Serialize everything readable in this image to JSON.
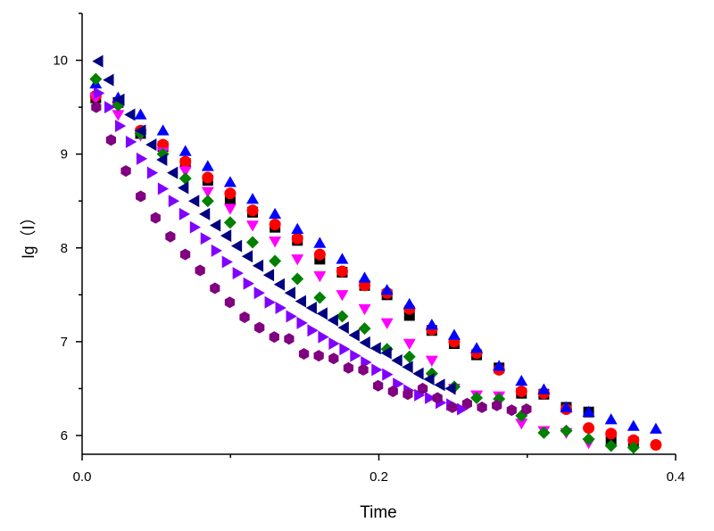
{
  "chart_data": {
    "type": "scatter",
    "title": "",
    "xlabel": "Time",
    "ylabel": "lg（I）",
    "xlim": [
      0,
      0.4
    ],
    "ylim": [
      5.8,
      10.5
    ],
    "xticks": [
      "0.0",
      "0.2",
      "0.4"
    ],
    "xtick_values": [
      0,
      0.2,
      0.4
    ],
    "xminor": [
      0.1,
      0.3
    ],
    "yticks": [
      "6",
      "7",
      "8",
      "9",
      "10"
    ],
    "ytick_values": [
      6,
      7,
      8,
      9,
      10
    ],
    "yminor": [
      6.5,
      7.5,
      8.5,
      9.5,
      10.5
    ],
    "grid": false,
    "legend": "none",
    "series": [
      {
        "name": "black-squares",
        "marker": "square",
        "color": "#000000",
        "x0": 0.0092,
        "dx": 0.0151,
        "values": [
          9.6,
          9.55,
          9.22,
          9.08,
          8.9,
          8.72,
          8.52,
          8.38,
          8.22,
          8.08,
          7.88,
          7.74,
          7.6,
          7.5,
          7.28,
          7.12,
          6.98,
          6.86,
          6.72,
          6.45,
          6.44,
          6.3,
          6.25,
          5.95,
          5.93
        ]
      },
      {
        "name": "red-circles",
        "marker": "circle",
        "color": "#ff0000",
        "x0": 0.0092,
        "dx": 0.0151,
        "values": [
          9.62,
          9.55,
          9.25,
          9.1,
          8.92,
          8.75,
          8.58,
          8.4,
          8.25,
          8.1,
          7.93,
          7.75,
          7.6,
          7.52,
          7.35,
          7.13,
          7.0,
          6.88,
          6.7,
          6.47,
          6.45,
          6.28,
          6.08,
          6.02,
          5.95,
          5.9
        ]
      },
      {
        "name": "blue-triangles-up",
        "marker": "triangle-up",
        "color": "#0000ff",
        "x0": 0.0092,
        "dx": 0.0151,
        "values": [
          9.75,
          9.6,
          9.42,
          9.25,
          9.03,
          8.87,
          8.7,
          8.52,
          8.36,
          8.2,
          8.05,
          7.88,
          7.68,
          7.55,
          7.4,
          7.18,
          7.07,
          6.93,
          6.74,
          6.58,
          6.49,
          6.3,
          6.25,
          6.17,
          6.1,
          6.07
        ]
      },
      {
        "name": "magenta-triangles-down",
        "marker": "triangle-down",
        "color": "#ff00ff",
        "x0": 0.0092,
        "dx": 0.0151,
        "values": [
          9.6,
          9.42,
          9.2,
          9.02,
          8.82,
          8.6,
          8.42,
          8.24,
          8.07,
          7.88,
          7.7,
          7.5,
          7.35,
          7.2,
          6.98,
          6.8,
          6.5,
          6.43,
          6.42,
          6.13,
          6.05,
          6.03,
          5.92
        ]
      },
      {
        "name": "green-diamonds",
        "marker": "diamond",
        "color": "#008000",
        "x0": 0.0092,
        "dx": 0.0151,
        "values": [
          9.8,
          9.52,
          9.22,
          9.0,
          8.74,
          8.5,
          8.27,
          8.06,
          7.86,
          7.67,
          7.47,
          7.27,
          7.14,
          6.92,
          6.84,
          6.66,
          6.52,
          6.4,
          6.39,
          6.21,
          6.03,
          6.05,
          5.96,
          5.89,
          5.87
        ]
      },
      {
        "name": "navy-triangles-left",
        "marker": "triangle-left",
        "color": "#000080",
        "x0": 0.011,
        "dx": 0.0072,
        "values": [
          9.99,
          9.79,
          9.58,
          9.42,
          9.25,
          9.1,
          8.94,
          8.8,
          8.64,
          8.5,
          8.36,
          8.24,
          8.13,
          8.02,
          7.91,
          7.81,
          7.71,
          7.61,
          7.52,
          7.43,
          7.36,
          7.3,
          7.23,
          7.15,
          7.07,
          6.99,
          6.93,
          6.88,
          6.8,
          6.73,
          6.66,
          6.6,
          6.54,
          6.5
        ]
      },
      {
        "name": "violet-triangles-right",
        "marker": "triangle-right",
        "color": "#8000ff",
        "x0": 0.011,
        "dx": 0.0072,
        "values": [
          9.65,
          9.5,
          9.3,
          9.13,
          8.95,
          8.8,
          8.63,
          8.5,
          8.36,
          8.22,
          8.1,
          7.97,
          7.85,
          7.73,
          7.62,
          7.52,
          7.42,
          7.36,
          7.27,
          7.2,
          7.12,
          7.05,
          6.98,
          6.92,
          6.85,
          6.78,
          6.7,
          6.65,
          6.55,
          6.48,
          6.43,
          6.4,
          6.35,
          6.33,
          6.28
        ]
      },
      {
        "name": "purple-hexagons",
        "marker": "hexagon",
        "color": "#800080",
        "x0": 0.0095,
        "dx": 0.01,
        "values": [
          9.5,
          9.15,
          8.82,
          8.55,
          8.32,
          8.12,
          7.93,
          7.76,
          7.57,
          7.42,
          7.26,
          7.15,
          7.05,
          7.03,
          6.87,
          6.85,
          6.82,
          6.72,
          6.7,
          6.53,
          6.47,
          6.44,
          6.5,
          6.4,
          6.3,
          6.34,
          6.3,
          6.32,
          6.27,
          6.28
        ]
      }
    ]
  }
}
